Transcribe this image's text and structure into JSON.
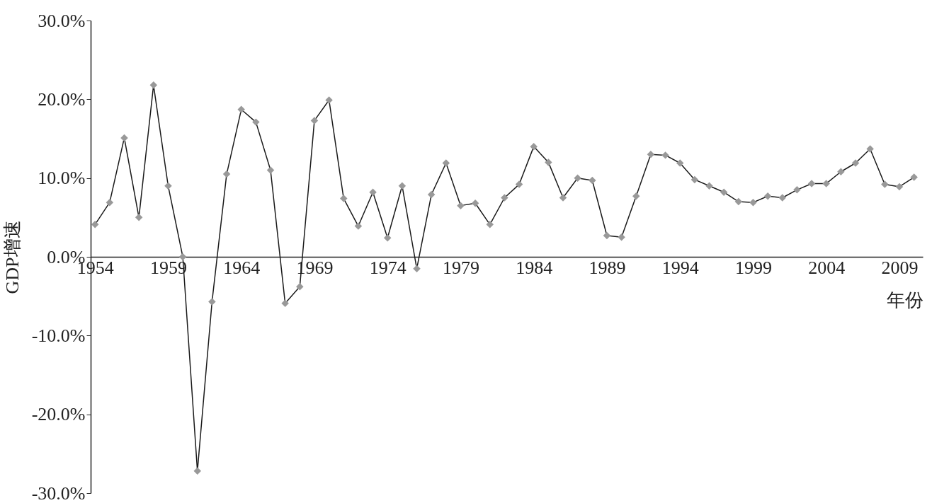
{
  "chart_data": {
    "type": "line",
    "xlabel": "年份",
    "ylabel": "GDP增速",
    "x": [
      1954,
      1955,
      1956,
      1957,
      1958,
      1959,
      1960,
      1961,
      1962,
      1963,
      1964,
      1965,
      1966,
      1967,
      1968,
      1969,
      1970,
      1971,
      1972,
      1973,
      1974,
      1975,
      1976,
      1977,
      1978,
      1979,
      1980,
      1981,
      1982,
      1983,
      1984,
      1985,
      1986,
      1987,
      1988,
      1989,
      1990,
      1991,
      1992,
      1993,
      1994,
      1995,
      1996,
      1997,
      1998,
      1999,
      2000,
      2001,
      2002,
      2003,
      2004,
      2005,
      2006,
      2007,
      2008,
      2009,
      2010
    ],
    "series": [
      {
        "color": "#999999",
        "values": [
          4.1,
          6.9,
          15.1,
          5.0,
          21.8,
          9.0,
          0.0,
          -27.2,
          -5.7,
          10.5,
          18.7,
          17.1,
          11.0,
          -5.9,
          -3.8,
          17.3,
          19.9,
          7.4,
          3.9,
          8.2,
          2.4,
          9.0,
          -1.5,
          7.9,
          11.9,
          6.5,
          6.8,
          4.1,
          7.5,
          9.2,
          14.0,
          12.0,
          7.5,
          10.0,
          9.7,
          2.7,
          2.5,
          7.7,
          13.0,
          12.9,
          11.9,
          9.8,
          9.0,
          8.2,
          7.0,
          6.9,
          7.7,
          7.5,
          8.5,
          9.3,
          9.3,
          10.8,
          11.9,
          13.7,
          9.2,
          8.9,
          10.1
        ]
      }
    ],
    "xlim": [
      1953.7,
      2010.6
    ],
    "xticks": [
      1954,
      1959,
      1964,
      1969,
      1974,
      1979,
      1984,
      1989,
      1994,
      1999,
      2004,
      2009
    ],
    "ylim": [
      -30,
      30
    ],
    "yticks": [
      {
        "value": -30,
        "label": "-30.0%"
      },
      {
        "value": -20,
        "label": "-20.0%"
      },
      {
        "value": -10,
        "label": "-10.0%"
      },
      {
        "value": 0,
        "label": "0.0%"
      },
      {
        "value": 10,
        "label": "10.0%"
      },
      {
        "value": 20,
        "label": "20.0%"
      },
      {
        "value": 30,
        "label": "30.0%"
      }
    ],
    "marker": "diamond",
    "line_style": "solid",
    "grid": false
  }
}
